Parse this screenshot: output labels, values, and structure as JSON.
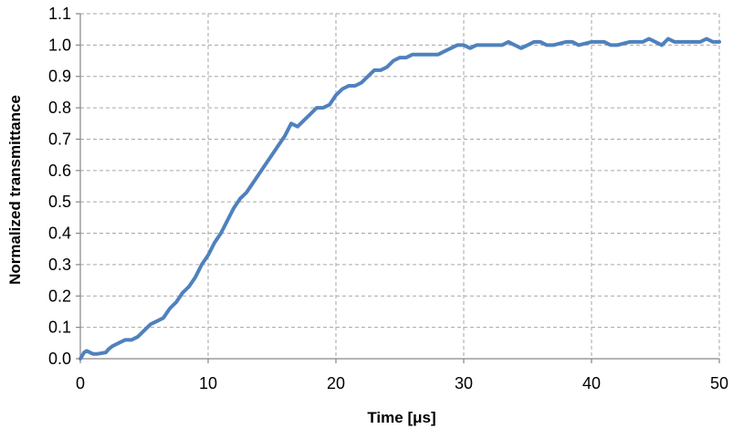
{
  "chart_data": {
    "type": "line",
    "xlabel": "Time [μs]",
    "ylabel": "Normalized transmittance",
    "xlim": [
      0,
      50
    ],
    "ylim": [
      0,
      1.1
    ],
    "x_ticks": [
      "0",
      "10",
      "20",
      "30",
      "40",
      "50"
    ],
    "y_ticks": [
      "0.0",
      "0.1",
      "0.2",
      "0.3",
      "0.4",
      "0.5",
      "0.6",
      "0.7",
      "0.8",
      "0.9",
      "1.0",
      "1.1"
    ],
    "grid": true,
    "legend": "none",
    "line_color": "#4F81BD",
    "series": [
      {
        "x": [
          0,
          0.3,
          0.5,
          1.0,
          1.3,
          2.0,
          2.2,
          2.5,
          3.0,
          3.5,
          4.0,
          4.5,
          5.0,
          5.5,
          6.0,
          6.5,
          7.0,
          7.5,
          8.0,
          8.5,
          9.0,
          9.5,
          10.0,
          10.5,
          11.0,
          11.5,
          12.0,
          12.5,
          13.0,
          13.5,
          14.0,
          14.5,
          15.0,
          15.5,
          16.0,
          16.5,
          17.0,
          17.5,
          18.0,
          18.5,
          19.0,
          19.5,
          20.0,
          20.5,
          21.0,
          21.5,
          22.0,
          22.5,
          23.0,
          23.5,
          24.0,
          24.5,
          25.0,
          25.5,
          26.0,
          27.0,
          28.0,
          28.5,
          29.0,
          29.5,
          30.0,
          30.5,
          31.0,
          32.0,
          32.5,
          33.0,
          33.5,
          34.0,
          34.5,
          35.0,
          35.5,
          36.0,
          36.5,
          37.0,
          38.0,
          38.5,
          39.0,
          40.0,
          40.5,
          41.0,
          41.5,
          42.0,
          43.0,
          44.0,
          44.5,
          45.0,
          45.5,
          46.0,
          46.5,
          47.0,
          48.0,
          48.5,
          49.0,
          49.5,
          50.0
        ],
        "values": [
          0.0,
          0.02,
          0.025,
          0.015,
          0.015,
          0.02,
          0.03,
          0.04,
          0.05,
          0.06,
          0.06,
          0.07,
          0.09,
          0.11,
          0.12,
          0.13,
          0.16,
          0.18,
          0.21,
          0.23,
          0.26,
          0.3,
          0.33,
          0.37,
          0.4,
          0.44,
          0.48,
          0.51,
          0.53,
          0.56,
          0.59,
          0.62,
          0.65,
          0.68,
          0.71,
          0.75,
          0.74,
          0.76,
          0.78,
          0.8,
          0.8,
          0.81,
          0.84,
          0.86,
          0.87,
          0.87,
          0.88,
          0.9,
          0.92,
          0.92,
          0.93,
          0.95,
          0.96,
          0.96,
          0.97,
          0.97,
          0.97,
          0.98,
          0.99,
          1.0,
          1.0,
          0.99,
          1.0,
          1.0,
          1.0,
          1.0,
          1.01,
          1.0,
          0.99,
          1.0,
          1.01,
          1.01,
          1.0,
          1.0,
          1.01,
          1.01,
          1.0,
          1.01,
          1.01,
          1.01,
          1.0,
          1.0,
          1.01,
          1.01,
          1.02,
          1.01,
          1.0,
          1.02,
          1.01,
          1.01,
          1.01,
          1.01,
          1.02,
          1.01,
          1.01
        ]
      }
    ]
  }
}
